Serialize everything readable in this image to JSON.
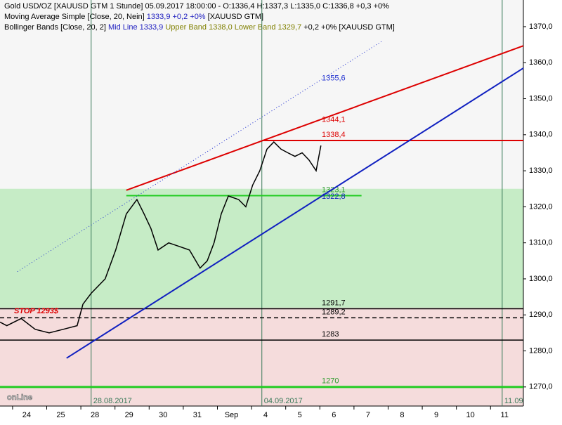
{
  "chart_data": {
    "type": "line",
    "legend_lines": [
      [
        {
          "text": "Gold USD/OZ [XAUUSD GTM  1 Stunde] 05.09.2017 18:00:00 - O:1336,4 H:1337,3 L:1335,0 C:1336,8 +0,3 +0%",
          "color": "#000000"
        }
      ],
      [
        {
          "text": "Moving Average Simple [Close, 20, Nein] ",
          "color": "#000000"
        },
        {
          "text": "1333,9 +0,2 +0%",
          "color": "#2020c0"
        },
        {
          "text": " [XAUUSD GTM]",
          "color": "#000000"
        }
      ],
      [
        {
          "text": "Bollinger Bands [Close, 20, 2] ",
          "color": "#000000"
        },
        {
          "text": "Mid Line 1333,9",
          "color": "#2020c0"
        },
        {
          "text": " Upper Band 1338,0 Lower Band 1329,7",
          "color": "#808000"
        },
        {
          "text": " +0,2 +0% [XAUUSD GTM]",
          "color": "#000000"
        }
      ]
    ],
    "x": [
      -0.78,
      -0.58,
      -0.16,
      0.25,
      0.66,
      1.07,
      1.48,
      1.65,
      1.89,
      2.3,
      2.61,
      2.92,
      3.23,
      3.44,
      3.64,
      3.85,
      4.16,
      4.47,
      4.77,
      5.08,
      5.29,
      5.49,
      5.7,
      5.91,
      6.21,
      6.42,
      6.62,
      6.83,
      7.04,
      7.24,
      7.45,
      7.65,
      7.86,
      8.07,
      8.27,
      8.48,
      8.62
    ],
    "series": [
      {
        "name": "Gold USD/OZ",
        "color": "#000000",
        "values": [
          1288,
          1287,
          1289,
          1286,
          1285,
          1286,
          1287,
          1293,
          1296,
          1300,
          1308,
          1318,
          1322,
          1318,
          1314,
          1308,
          1310,
          1309,
          1308,
          1303,
          1305,
          1310,
          1318,
          1323,
          1322,
          1320,
          1326,
          1330,
          1336,
          1338,
          1336,
          1335,
          1334,
          1335,
          1333,
          1330,
          1337
        ]
      }
    ],
    "xlim": [
      -0.78,
      14.55
    ],
    "ylim": [
      1264.7,
      1377.4
    ],
    "xticks": [
      {
        "value": 0,
        "label": "24"
      },
      {
        "value": 1,
        "label": "25"
      },
      {
        "value": 2,
        "label": "28"
      },
      {
        "value": 3,
        "label": "29"
      },
      {
        "value": 4,
        "label": "30"
      },
      {
        "value": 5,
        "label": "31"
      },
      {
        "value": 6,
        "label": "Sep"
      },
      {
        "value": 7,
        "label": "4"
      },
      {
        "value": 8,
        "label": "5"
      },
      {
        "value": 9,
        "label": "6"
      },
      {
        "value": 10,
        "label": "7"
      },
      {
        "value": 11,
        "label": "8"
      },
      {
        "value": 12,
        "label": "9"
      },
      {
        "value": 13,
        "label": "10"
      },
      {
        "value": 14,
        "label": "11"
      }
    ],
    "yticks": [
      {
        "value": 1270,
        "label": "1270,0"
      },
      {
        "value": 1280,
        "label": "1280,0"
      },
      {
        "value": 1290,
        "label": "1290,0"
      },
      {
        "value": 1300,
        "label": "1300,0"
      },
      {
        "value": 1310,
        "label": "1310,0"
      },
      {
        "value": 1320,
        "label": "1320,0"
      },
      {
        "value": 1330,
        "label": "1330,0"
      },
      {
        "value": 1340,
        "label": "1340,0"
      },
      {
        "value": 1350,
        "label": "1350,0"
      },
      {
        "value": 1360,
        "label": "1360,0"
      },
      {
        "value": 1370,
        "label": "1370,0"
      }
    ],
    "zones": [
      {
        "from": 1292,
        "to": 1325,
        "color": "#c6ecc6"
      },
      {
        "from": 1264.7,
        "to": 1292,
        "color": "#f5dcdc"
      }
    ],
    "week_markers": [
      {
        "x": 1.89,
        "label": "28.08.2017"
      },
      {
        "x": 6.89,
        "label": "04.09.2017"
      },
      {
        "x": 13.93,
        "label": "11.09"
      }
    ],
    "levels": [
      {
        "value": 1291.7,
        "label": "1291,7",
        "color": "#000000",
        "style": "solid",
        "width": 1.5,
        "x_range": [
          -0.78,
          14.55
        ]
      },
      {
        "value": 1289.2,
        "label": "1289,2",
        "color": "#000000",
        "style": "dashed",
        "width": 1.5,
        "x_range": [
          -0.78,
          14.55
        ]
      },
      {
        "value": 1283,
        "label": "1283",
        "color": "#000000",
        "style": "solid",
        "width": 1.5,
        "x_range": [
          -0.78,
          14.55
        ]
      },
      {
        "value": 1270,
        "label": "1270",
        "color": "#22cc22",
        "style": "solid",
        "width": 3,
        "x_range": [
          -0.78,
          14.55
        ]
      },
      {
        "value": 1338.4,
        "label": "1338,4",
        "color": "#dd0000",
        "style": "solid",
        "width": 2,
        "x_range": [
          6.89,
          14.55
        ]
      },
      {
        "value": 1323.1,
        "label": "1323,1",
        "color": "#22cc22",
        "style": "solid",
        "width": 2,
        "x_range": [
          2.92,
          9.81
        ]
      }
    ],
    "trend_lines": [
      {
        "x": [
          2.92,
          14.55
        ],
        "y": [
          1324.6,
          1364.7
        ],
        "color": "#dd0000",
        "style": "solid",
        "width": 2,
        "label": "1344,1",
        "label_value": 1344.1
      },
      {
        "x": [
          1.17,
          14.55
        ],
        "y": [
          1278.0,
          1358.5
        ],
        "color": "#1020c0",
        "style": "solid",
        "width": 2,
        "label": "1322,8",
        "label_value": 1322.8
      },
      {
        "x": [
          -0.27,
          10.43
        ],
        "y": [
          1302.0,
          1366.1
        ],
        "color": "#2030d0",
        "style": "dotted",
        "width": 1,
        "label": "1355,6",
        "label_value": 1355.6
      }
    ],
    "annotations": [
      {
        "text": "STOP 1293$",
        "value": 1293,
        "color": "#dd0000"
      }
    ],
    "watermark": "onLine"
  }
}
